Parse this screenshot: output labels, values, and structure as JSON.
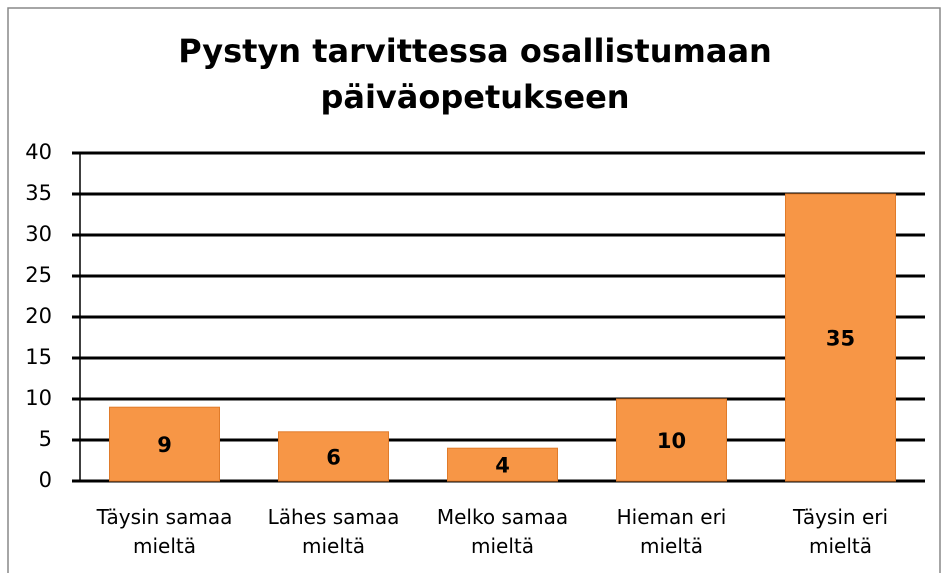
{
  "chart_data": {
    "type": "bar",
    "title": "Pystyn tarvittessa osallistumaan päiväopetukseen",
    "categories": [
      "Täysin samaa mieltä",
      "Lähes samaa mieltä",
      "Melko samaa mieltä",
      "Hieman eri mieltä",
      "Täysin eri mieltä"
    ],
    "values": [
      9,
      6,
      4,
      10,
      35
    ],
    "color": "#f79646",
    "ylim": [
      0,
      40
    ],
    "yticks": [
      0,
      5,
      10,
      15,
      20,
      25,
      30,
      35,
      40
    ],
    "grid": true
  }
}
